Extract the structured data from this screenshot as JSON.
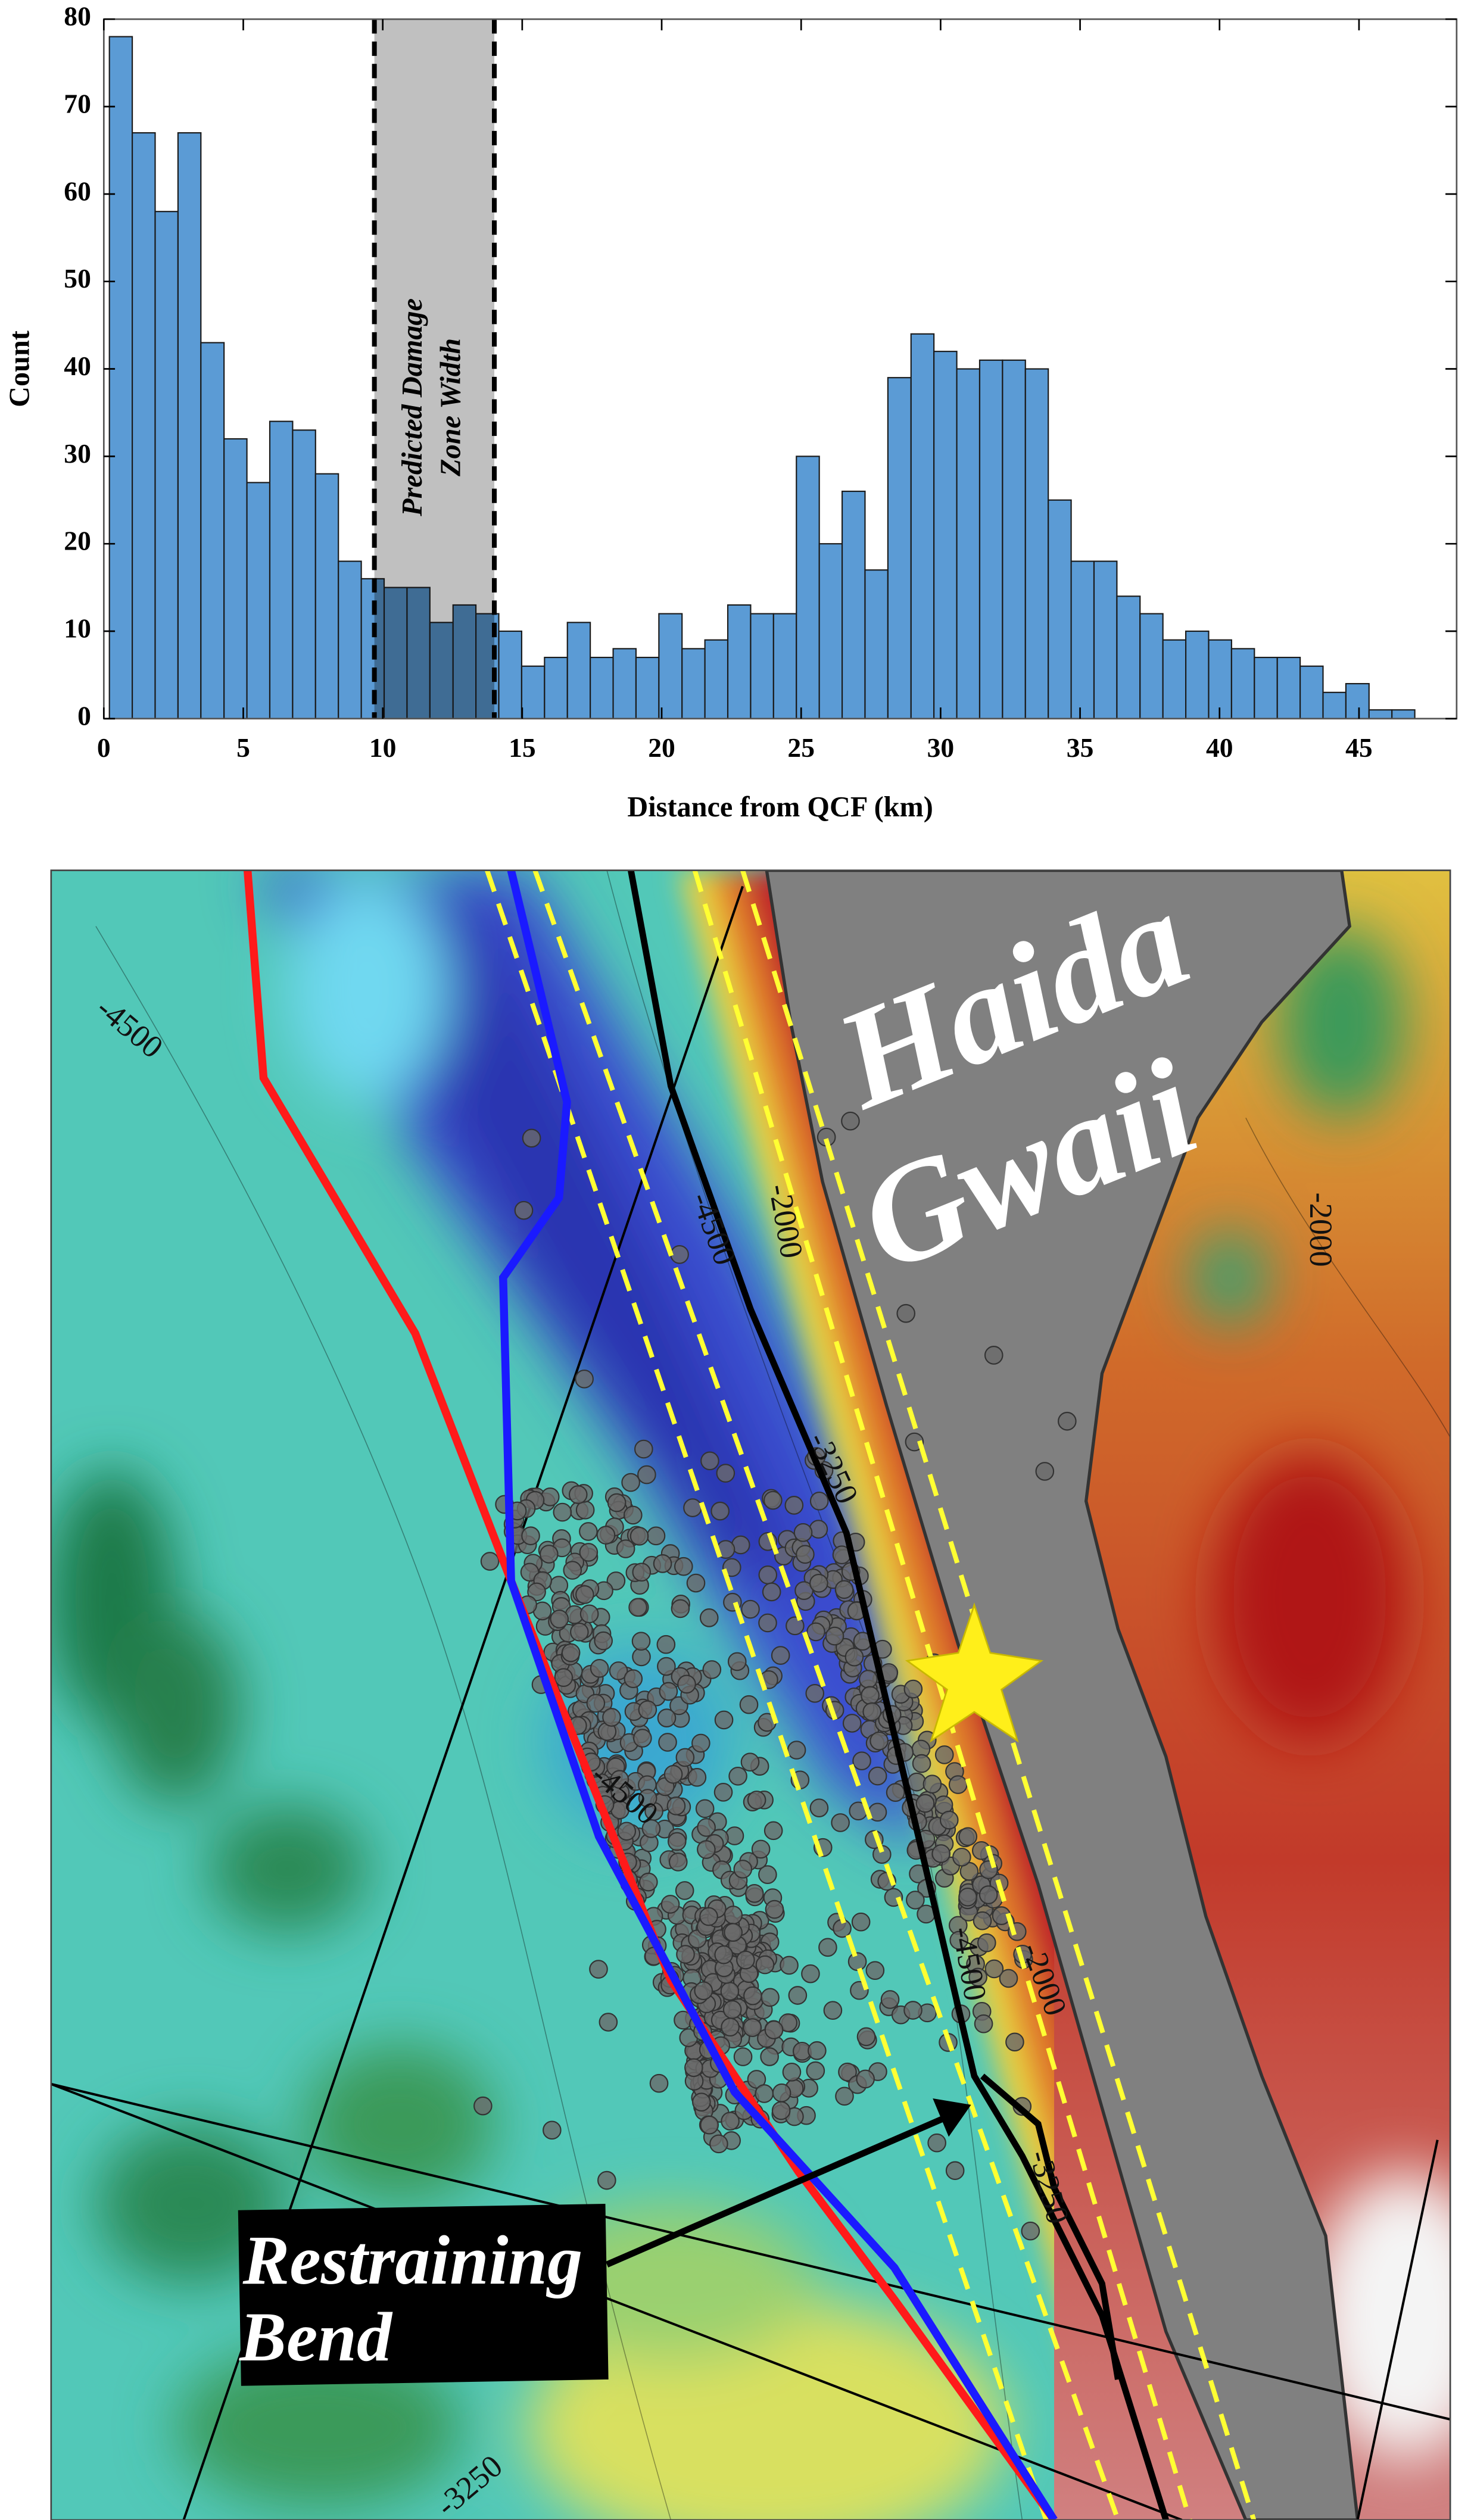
{
  "chart_data": {
    "type": "histogram",
    "xlabel": "Distance from QCF (km)",
    "ylabel": "Count",
    "bins": [
      0.2,
      1.02,
      1.84,
      2.66,
      3.48,
      4.31,
      5.13,
      5.95,
      6.77,
      7.59,
      8.41,
      9.23,
      10.05,
      10.87,
      11.69,
      12.52,
      13.34,
      14.16,
      14.98,
      15.8,
      16.62,
      17.44,
      18.26,
      19.08,
      19.9,
      20.73,
      21.55,
      22.37,
      23.19,
      24.01,
      24.83,
      25.65,
      26.47,
      27.29,
      28.11,
      28.94,
      29.76,
      30.58,
      31.4,
      32.22,
      33.04,
      33.86,
      34.68,
      35.5,
      36.32,
      37.15,
      37.97,
      38.79,
      39.61,
      40.43,
      41.25,
      42.07,
      42.89,
      43.71,
      44.53,
      45.36,
      46.18,
      47.0
    ],
    "counts": [
      78,
      67,
      58,
      67,
      43,
      32,
      27,
      34,
      33,
      28,
      18,
      16,
      15,
      15,
      11,
      13,
      12,
      10,
      6,
      7,
      11,
      7,
      8,
      7,
      12,
      8,
      9,
      13,
      12,
      12,
      30,
      20,
      26,
      17,
      39,
      44,
      42,
      40,
      41,
      41,
      40,
      25,
      18,
      18,
      14,
      12,
      9,
      10,
      9,
      8,
      7,
      7,
      6,
      3,
      4,
      1,
      1
    ],
    "color": "#5b9bd5",
    "xlim": [
      0,
      48.5
    ],
    "ylim": [
      0,
      80
    ],
    "xticks": [
      0,
      5,
      10,
      15,
      20,
      25,
      30,
      35,
      40,
      45
    ],
    "yticks": [
      0,
      10,
      20,
      30,
      40,
      50,
      60,
      70,
      80
    ],
    "annotation": {
      "lines": [
        "Predicted Damage",
        "Zone Width"
      ],
      "x": [
        9.7,
        14.0
      ]
    }
  },
  "map": {
    "region_label": [
      "Haida",
      "Gwaii"
    ],
    "feature_label": [
      "Restraining",
      "Bend"
    ],
    "contour_labels": [
      "-4500",
      "-2000",
      "-2000",
      "-4500",
      "-3250",
      "-4500",
      "-4500",
      "-2000",
      "-3250",
      "-3250"
    ]
  }
}
